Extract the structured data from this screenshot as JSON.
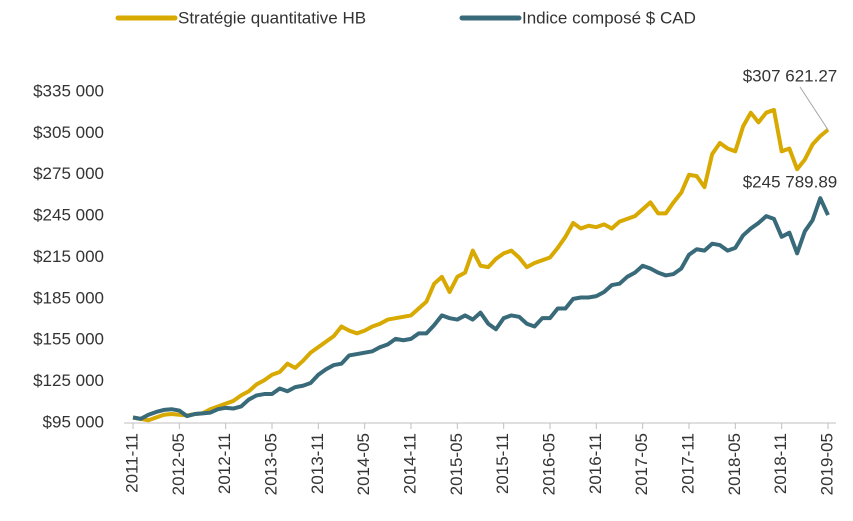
{
  "chart_data": {
    "type": "line",
    "categories": [
      "2011-11",
      null,
      null,
      null,
      null,
      null,
      "2012-05",
      null,
      null,
      null,
      null,
      null,
      "2012-11",
      null,
      null,
      null,
      null,
      null,
      "2013-05",
      null,
      null,
      null,
      null,
      null,
      "2013-11",
      null,
      null,
      null,
      null,
      null,
      "2014-05",
      null,
      null,
      null,
      null,
      null,
      "2014-11",
      null,
      null,
      null,
      null,
      null,
      "2015-05",
      null,
      null,
      null,
      null,
      null,
      "2015-11",
      null,
      null,
      null,
      null,
      null,
      "2016-05",
      null,
      null,
      null,
      null,
      null,
      "2016-11",
      null,
      null,
      null,
      null,
      null,
      "2017-05",
      null,
      null,
      null,
      null,
      null,
      "2017-11",
      null,
      null,
      null,
      null,
      null,
      "2018-05",
      null,
      null,
      null,
      null,
      null,
      "2018-11",
      null,
      null,
      null,
      null,
      null,
      "2019-05"
    ],
    "series": [
      {
        "name": "Stratégie quantitative HB",
        "color": "#d8a900",
        "values": [
          99000,
          98000,
          97000,
          99000,
          101000,
          101500,
          101000,
          100500,
          101500,
          102000,
          105000,
          107000,
          109000,
          111000,
          115000,
          118000,
          123000,
          126000,
          130000,
          132000,
          138000,
          135000,
          140000,
          146000,
          150000,
          154000,
          158000,
          165000,
          162000,
          160000,
          162000,
          165000,
          167000,
          170000,
          171000,
          172000,
          173000,
          178000,
          183000,
          196000,
          201000,
          190000,
          201000,
          204000,
          220000,
          209000,
          208000,
          214000,
          218000,
          220000,
          215000,
          208000,
          211000,
          213000,
          215000,
          222000,
          230000,
          240000,
          236000,
          238000,
          237000,
          239000,
          236000,
          241000,
          243000,
          245000,
          250000,
          255000,
          247000,
          247000,
          255000,
          262000,
          275000,
          274000,
          266000,
          290000,
          298000,
          294000,
          292000,
          310000,
          320000,
          313000,
          320000,
          322000,
          292000,
          294000,
          279000,
          286000,
          297000,
          303000,
          307621.27
        ],
        "value_labels": [
          null,
          null,
          null,
          null,
          null,
          null,
          null,
          null,
          null,
          null,
          null,
          null,
          null,
          null,
          null,
          null,
          null,
          null,
          null,
          null,
          null,
          null,
          null,
          null,
          null,
          null,
          null,
          null,
          null,
          null,
          null,
          null,
          null,
          null,
          null,
          null,
          null,
          null,
          null,
          null,
          null,
          null,
          null,
          null,
          null,
          null,
          null,
          null,
          null,
          null,
          null,
          null,
          null,
          null,
          null,
          null,
          null,
          null,
          null,
          null,
          null,
          null,
          null,
          null,
          null,
          null,
          null,
          null,
          null,
          null,
          null,
          null,
          null,
          null,
          null,
          null,
          null,
          null,
          null,
          null,
          null,
          null,
          null,
          null,
          null,
          null,
          null,
          null,
          null,
          null,
          "$307 621.27"
        ]
      },
      {
        "name": "Indice composé $ CAD",
        "color": "#386a79",
        "values": [
          99000,
          98000,
          101000,
          103000,
          104500,
          105000,
          104000,
          100000,
          101500,
          102000,
          102500,
          105000,
          106000,
          105500,
          107000,
          112000,
          115000,
          116000,
          116000,
          120000,
          118000,
          121000,
          122000,
          124000,
          130000,
          134000,
          137000,
          138000,
          144000,
          145000,
          146000,
          147000,
          150000,
          152000,
          156000,
          155000,
          156000,
          160000,
          160000,
          166000,
          173000,
          171000,
          170000,
          173000,
          170000,
          175000,
          167000,
          163000,
          171000,
          173000,
          172000,
          167000,
          165000,
          171000,
          171000,
          178000,
          178000,
          185000,
          186000,
          186000,
          187000,
          190000,
          195000,
          196000,
          201000,
          204000,
          209000,
          207000,
          204000,
          202000,
          203000,
          207000,
          217000,
          221000,
          220000,
          225000,
          224000,
          220000,
          222000,
          231000,
          236000,
          240000,
          245000,
          243000,
          230000,
          233000,
          218000,
          234000,
          242000,
          258000,
          245789.89
        ],
        "value_labels": [
          null,
          null,
          null,
          null,
          null,
          null,
          null,
          null,
          null,
          null,
          null,
          null,
          null,
          null,
          null,
          null,
          null,
          null,
          null,
          null,
          null,
          null,
          null,
          null,
          null,
          null,
          null,
          null,
          null,
          null,
          null,
          null,
          null,
          null,
          null,
          null,
          null,
          null,
          null,
          null,
          null,
          null,
          null,
          null,
          null,
          null,
          null,
          null,
          null,
          null,
          null,
          null,
          null,
          null,
          null,
          null,
          null,
          null,
          null,
          null,
          null,
          null,
          null,
          null,
          null,
          null,
          null,
          null,
          null,
          null,
          null,
          null,
          null,
          null,
          null,
          null,
          null,
          null,
          null,
          null,
          null,
          null,
          null,
          null,
          null,
          null,
          null,
          null,
          null,
          null,
          "$245 789.89"
        ]
      }
    ],
    "ylim": [
      95000,
      335000
    ],
    "yticks": [
      {
        "value": 95000,
        "label": "$95 000"
      },
      {
        "value": 125000,
        "label": "$125 000"
      },
      {
        "value": 155000,
        "label": "$155 000"
      },
      {
        "value": 185000,
        "label": "$185 000"
      },
      {
        "value": 215000,
        "label": "$215 000"
      },
      {
        "value": 245000,
        "label": "$245 000"
      },
      {
        "value": 275000,
        "label": "$275 000"
      },
      {
        "value": 305000,
        "label": "$305 000"
      },
      {
        "value": 335000,
        "label": "$335 000"
      }
    ],
    "legend": "top",
    "grid": false
  }
}
